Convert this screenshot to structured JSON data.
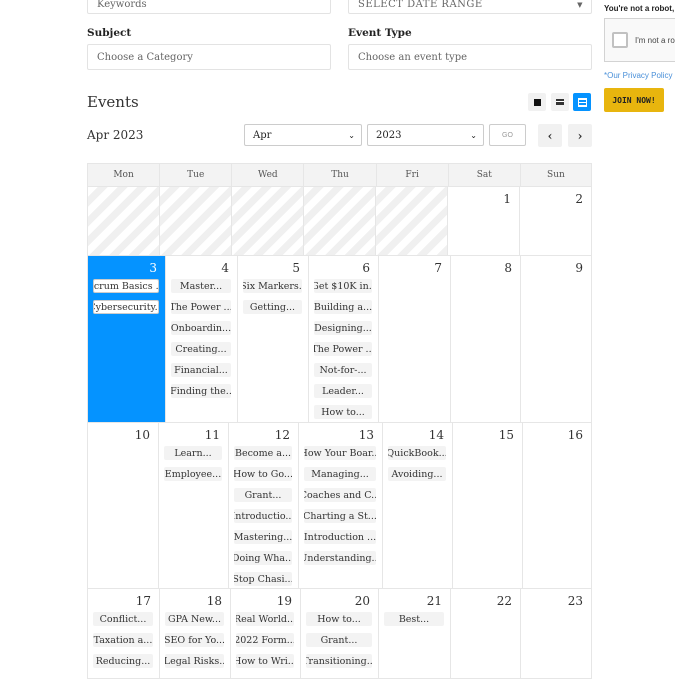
{
  "filters": {
    "keywords_placeholder": "Keywords",
    "date_range": "SELECT DATE RANGE",
    "subject_label": "Subject",
    "subject_placeholder": "Choose a Category",
    "event_type_label": "Event Type",
    "event_type_placeholder": "Choose an event type"
  },
  "sidebar": {
    "robot_text": "You're not a robot,",
    "captcha_label": "I'm not a ro",
    "privacy": "*Our Privacy Policy",
    "join": "JOIN NOW!",
    "join_color": "#e8b50e"
  },
  "events": {
    "title": "Events",
    "current": "Apr 2023",
    "month": "Apr",
    "year": "2023",
    "go": "GO",
    "prev": "‹",
    "next": "›",
    "view_icons": [
      "block-view-icon",
      "list-view-icon",
      "calendar-view-icon"
    ],
    "accent": "#0593ff"
  },
  "calendar": {
    "weekdays": [
      "Mon",
      "Tue",
      "Wed",
      "Thu",
      "Fri",
      "Sat",
      "Sun"
    ],
    "weeks": [
      [
        {
          "day": "",
          "blank": true
        },
        {
          "day": "",
          "blank": true
        },
        {
          "day": "",
          "blank": true
        },
        {
          "day": "",
          "blank": true
        },
        {
          "day": "",
          "blank": true
        },
        {
          "day": "1",
          "events": []
        },
        {
          "day": "2",
          "events": []
        }
      ],
      [
        {
          "day": "3",
          "today": true,
          "events": [
            "Scrum Basics ...",
            "Cybersecurity..."
          ]
        },
        {
          "day": "4",
          "events": [
            "Master...",
            "The Power ...",
            "Onboardin...",
            "Creating...",
            "Financial...",
            "Finding the.."
          ]
        },
        {
          "day": "5",
          "events": [
            "Six Markers..",
            "Getting..."
          ]
        },
        {
          "day": "6",
          "events": [
            "Get $10K in..",
            "Building a...",
            "Designing...",
            "The Power ...",
            "Not-for-...",
            "Leader...",
            "How to..."
          ]
        },
        {
          "day": "7",
          "events": []
        },
        {
          "day": "8",
          "events": []
        },
        {
          "day": "9",
          "events": []
        }
      ],
      [
        {
          "day": "10",
          "events": []
        },
        {
          "day": "11",
          "events": [
            "Learn...",
            "Employee..."
          ]
        },
        {
          "day": "12",
          "events": [
            "Become a...",
            "How to Go...",
            "Grant...",
            "Introductio...",
            "Mastering...",
            "Doing Wha...",
            "Stop Chasi..."
          ]
        },
        {
          "day": "13",
          "events": [
            "How Your Boar...",
            "Managing...",
            "Coaches and C...",
            "Charting a St...",
            "Introduction ...",
            "Understanding..."
          ]
        },
        {
          "day": "14",
          "events": [
            "QuickBook...",
            "Avoiding..."
          ]
        },
        {
          "day": "15",
          "events": []
        },
        {
          "day": "16",
          "events": []
        }
      ],
      [
        {
          "day": "17",
          "events": [
            "Conflict...",
            "Taxation a...",
            "Reducing..."
          ]
        },
        {
          "day": "18",
          "events": [
            "GPA New...",
            "SEO for Yo...",
            "Legal Risks.."
          ]
        },
        {
          "day": "19",
          "events": [
            "Real World...",
            "2022 Form...",
            "How to Wri..."
          ]
        },
        {
          "day": "20",
          "events": [
            "How to...",
            "Grant...",
            "Transitioning..."
          ]
        },
        {
          "day": "21",
          "events": [
            "Best..."
          ]
        },
        {
          "day": "22",
          "events": []
        },
        {
          "day": "23",
          "events": []
        }
      ]
    ]
  }
}
